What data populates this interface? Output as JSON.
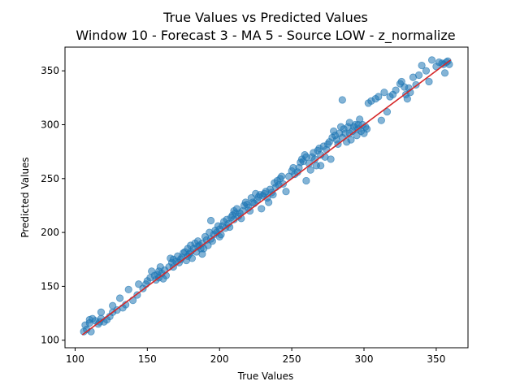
{
  "chart_data": {
    "type": "scatter",
    "title": "True Values vs Predicted Values",
    "subtitle": "Window 10 - Forecast 3 - MA 5 - Source LOW - z_normalize",
    "xlabel": "True Values",
    "ylabel": "Predicted Values",
    "xlim": [
      93,
      372
    ],
    "ylim": [
      93,
      372
    ],
    "xticks": [
      100,
      150,
      200,
      250,
      300,
      350
    ],
    "yticks": [
      100,
      150,
      200,
      250,
      300,
      350
    ],
    "grid": false,
    "point_color": "#1f77b4",
    "line_color": "#d62728",
    "reference_line": [
      [
        105,
        105
      ],
      [
        360,
        360
      ]
    ],
    "points": [
      [
        106,
        108
      ],
      [
        107,
        114
      ],
      [
        108,
        110
      ],
      [
        110,
        116
      ],
      [
        110,
        119
      ],
      [
        111,
        108
      ],
      [
        112,
        120
      ],
      [
        114,
        118
      ],
      [
        116,
        115
      ],
      [
        117,
        117
      ],
      [
        118,
        120
      ],
      [
        118,
        126
      ],
      [
        120,
        117
      ],
      [
        122,
        119
      ],
      [
        124,
        122
      ],
      [
        126,
        126
      ],
      [
        126,
        132
      ],
      [
        129,
        128
      ],
      [
        131,
        139
      ],
      [
        133,
        130
      ],
      [
        135,
        133
      ],
      [
        137,
        147
      ],
      [
        140,
        137
      ],
      [
        143,
        142
      ],
      [
        144,
        152
      ],
      [
        147,
        148
      ],
      [
        149,
        152
      ],
      [
        150,
        155
      ],
      [
        152,
        158
      ],
      [
        153,
        164
      ],
      [
        155,
        160
      ],
      [
        156,
        156
      ],
      [
        157,
        161
      ],
      [
        158,
        158
      ],
      [
        158,
        164
      ],
      [
        159,
        168
      ],
      [
        160,
        162
      ],
      [
        161,
        157
      ],
      [
        162,
        165
      ],
      [
        163,
        160
      ],
      [
        165,
        168
      ],
      [
        166,
        176
      ],
      [
        167,
        172
      ],
      [
        168,
        175
      ],
      [
        168,
        168
      ],
      [
        170,
        173
      ],
      [
        171,
        178
      ],
      [
        172,
        172
      ],
      [
        173,
        175
      ],
      [
        174,
        177
      ],
      [
        175,
        181
      ],
      [
        176,
        182
      ],
      [
        177,
        174
      ],
      [
        178,
        178
      ],
      [
        178,
        185
      ],
      [
        179,
        180
      ],
      [
        180,
        182
      ],
      [
        180,
        188
      ],
      [
        181,
        176
      ],
      [
        182,
        185
      ],
      [
        183,
        190
      ],
      [
        184,
        182
      ],
      [
        185,
        187
      ],
      [
        185,
        192
      ],
      [
        186,
        188
      ],
      [
        187,
        185
      ],
      [
        188,
        190
      ],
      [
        188,
        180
      ],
      [
        189,
        185
      ],
      [
        190,
        196
      ],
      [
        191,
        193
      ],
      [
        192,
        188
      ],
      [
        193,
        200
      ],
      [
        194,
        194
      ],
      [
        194,
        211
      ],
      [
        195,
        192
      ],
      [
        196,
        198
      ],
      [
        197,
        202
      ],
      [
        198,
        200
      ],
      [
        199,
        206
      ],
      [
        200,
        196
      ],
      [
        200,
        203
      ],
      [
        201,
        198
      ],
      [
        202,
        206
      ],
      [
        203,
        210
      ],
      [
        204,
        204
      ],
      [
        205,
        212
      ],
      [
        206,
        208
      ],
      [
        207,
        205
      ],
      [
        208,
        214
      ],
      [
        209,
        216
      ],
      [
        210,
        220
      ],
      [
        210,
        212
      ],
      [
        211,
        218
      ],
      [
        212,
        222
      ],
      [
        213,
        215
      ],
      [
        214,
        218
      ],
      [
        215,
        213
      ],
      [
        216,
        220
      ],
      [
        217,
        225
      ],
      [
        218,
        228
      ],
      [
        219,
        226
      ],
      [
        220,
        223
      ],
      [
        221,
        220
      ],
      [
        222,
        232
      ],
      [
        223,
        228
      ],
      [
        224,
        227
      ],
      [
        225,
        236
      ],
      [
        226,
        230
      ],
      [
        227,
        233
      ],
      [
        228,
        235
      ],
      [
        229,
        222
      ],
      [
        230,
        234
      ],
      [
        231,
        236
      ],
      [
        232,
        238
      ],
      [
        233,
        232
      ],
      [
        234,
        228
      ],
      [
        235,
        240
      ],
      [
        236,
        237
      ],
      [
        237,
        235
      ],
      [
        238,
        246
      ],
      [
        239,
        242
      ],
      [
        240,
        248
      ],
      [
        241,
        244
      ],
      [
        242,
        250
      ],
      [
        243,
        252
      ],
      [
        244,
        245
      ],
      [
        246,
        238
      ],
      [
        248,
        252
      ],
      [
        250,
        257
      ],
      [
        251,
        260
      ],
      [
        252,
        254
      ],
      [
        254,
        256
      ],
      [
        255,
        260
      ],
      [
        256,
        265
      ],
      [
        257,
        268
      ],
      [
        258,
        266
      ],
      [
        259,
        272
      ],
      [
        260,
        270
      ],
      [
        260,
        248
      ],
      [
        262,
        264
      ],
      [
        263,
        258
      ],
      [
        264,
        270
      ],
      [
        265,
        274
      ],
      [
        266,
        268
      ],
      [
        267,
        262
      ],
      [
        268,
        276
      ],
      [
        269,
        278
      ],
      [
        270,
        272
      ],
      [
        270,
        262
      ],
      [
        272,
        280
      ],
      [
        273,
        270
      ],
      [
        274,
        277
      ],
      [
        275,
        282
      ],
      [
        276,
        284
      ],
      [
        277,
        268
      ],
      [
        278,
        288
      ],
      [
        279,
        294
      ],
      [
        280,
        290
      ],
      [
        281,
        286
      ],
      [
        282,
        282
      ],
      [
        283,
        292
      ],
      [
        284,
        298
      ],
      [
        285,
        288
      ],
      [
        285,
        323
      ],
      [
        286,
        296
      ],
      [
        287,
        292
      ],
      [
        288,
        284
      ],
      [
        289,
        298
      ],
      [
        290,
        302
      ],
      [
        290,
        292
      ],
      [
        291,
        286
      ],
      [
        292,
        294
      ],
      [
        293,
        298
      ],
      [
        294,
        300
      ],
      [
        295,
        290
      ],
      [
        296,
        296
      ],
      [
        296,
        300
      ],
      [
        297,
        305
      ],
      [
        298,
        294
      ],
      [
        299,
        300
      ],
      [
        300,
        292
      ],
      [
        301,
        298
      ],
      [
        302,
        296
      ],
      [
        303,
        320
      ],
      [
        305,
        322
      ],
      [
        308,
        324
      ],
      [
        310,
        326
      ],
      [
        312,
        304
      ],
      [
        314,
        330
      ],
      [
        316,
        312
      ],
      [
        318,
        326
      ],
      [
        320,
        328
      ],
      [
        322,
        332
      ],
      [
        325,
        338
      ],
      [
        326,
        340
      ],
      [
        328,
        335
      ],
      [
        329,
        328
      ],
      [
        330,
        324
      ],
      [
        331,
        334
      ],
      [
        332,
        330
      ],
      [
        334,
        344
      ],
      [
        336,
        337
      ],
      [
        338,
        346
      ],
      [
        340,
        355
      ],
      [
        343,
        350
      ],
      [
        345,
        340
      ],
      [
        347,
        360
      ],
      [
        350,
        354
      ],
      [
        352,
        358
      ],
      [
        354,
        357
      ],
      [
        355,
        356
      ],
      [
        356,
        348
      ],
      [
        357,
        358
      ],
      [
        358,
        359
      ],
      [
        359,
        356
      ]
    ]
  }
}
